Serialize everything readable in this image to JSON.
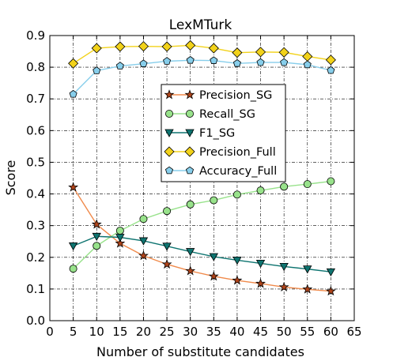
{
  "chart_data": {
    "type": "line",
    "title": "LexMTurk",
    "xlabel": "Number of substitute candidates",
    "ylabel": "Score",
    "xlim": [
      0,
      65
    ],
    "ylim": [
      0,
      0.9
    ],
    "xticks": [
      0,
      5,
      10,
      15,
      20,
      25,
      30,
      35,
      40,
      45,
      50,
      55,
      60,
      65
    ],
    "yticks": [
      0.0,
      0.1,
      0.2,
      0.3,
      0.4,
      0.5,
      0.6,
      0.7,
      0.8,
      0.9
    ],
    "grid": true,
    "legend_position": "center-right",
    "x": [
      5,
      10,
      15,
      20,
      25,
      30,
      35,
      40,
      45,
      50,
      55,
      60
    ],
    "series": [
      {
        "name": "Precision_SG",
        "marker": "star",
        "line_color": "#f08a4b",
        "marker_color": "#b0441a",
        "values": [
          0.421,
          0.304,
          0.244,
          0.205,
          0.178,
          0.157,
          0.14,
          0.127,
          0.117,
          0.106,
          0.099,
          0.093
        ]
      },
      {
        "name": "Recall_SG",
        "marker": "circle",
        "line_color": "#98e28b",
        "marker_color": "#98e28b",
        "values": [
          0.164,
          0.236,
          0.284,
          0.321,
          0.346,
          0.367,
          0.38,
          0.398,
          0.411,
          0.423,
          0.431,
          0.44
        ]
      },
      {
        "name": "F1_SG",
        "marker": "triangle-down",
        "line_color": "#0e7470",
        "marker_color": "#0e7470",
        "values": [
          0.236,
          0.266,
          0.263,
          0.252,
          0.235,
          0.218,
          0.202,
          0.191,
          0.181,
          0.171,
          0.163,
          0.154
        ]
      },
      {
        "name": "Precision_Full",
        "marker": "diamond",
        "line_color": "#f2d21a",
        "marker_color": "#f2d21a",
        "values": [
          0.812,
          0.86,
          0.865,
          0.866,
          0.865,
          0.869,
          0.86,
          0.846,
          0.848,
          0.847,
          0.834,
          0.823
        ]
      },
      {
        "name": "Accuracy_Full",
        "marker": "pentagon",
        "line_color": "#87ceeb",
        "marker_color": "#87ceeb",
        "values": [
          0.715,
          0.789,
          0.804,
          0.811,
          0.819,
          0.822,
          0.821,
          0.812,
          0.815,
          0.815,
          0.808,
          0.79
        ]
      }
    ]
  }
}
